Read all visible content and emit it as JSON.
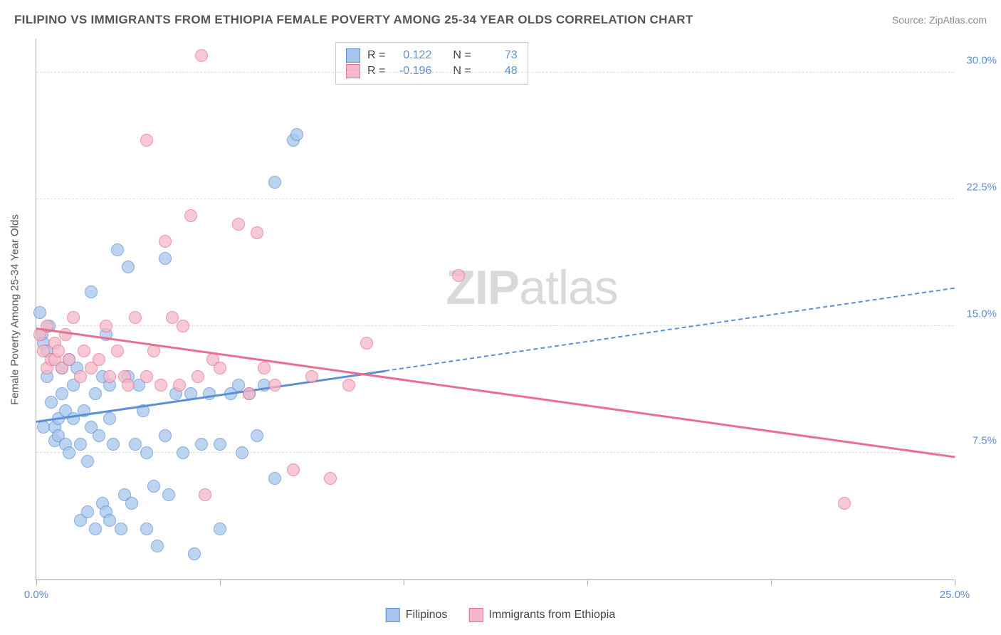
{
  "title": "FILIPINO VS IMMIGRANTS FROM ETHIOPIA FEMALE POVERTY AMONG 25-34 YEAR OLDS CORRELATION CHART",
  "source": "Source: ZipAtlas.com",
  "ylabel": "Female Poverty Among 25-34 Year Olds",
  "watermark_a": "ZIP",
  "watermark_b": "atlas",
  "chart": {
    "type": "scatter",
    "xlim": [
      0,
      25
    ],
    "ylim": [
      0,
      32
    ],
    "background_color": "#ffffff",
    "grid_color": "#dddddd",
    "axis_color": "#aaaaaa",
    "tick_label_color": "#5b8fd6",
    "tick_fontsize": 15,
    "title_fontsize": 17,
    "title_color": "#555555",
    "marker_radius": 9,
    "marker_stroke_width": 1.5,
    "marker_fill_opacity": 0.35,
    "trend_line_width": 2.5,
    "y_gridlines": [
      7.5,
      15.0,
      22.5,
      30.0
    ],
    "y_tick_labels": [
      "7.5%",
      "15.0%",
      "22.5%",
      "30.0%"
    ],
    "x_ticks": [
      0,
      5,
      10,
      15,
      20,
      25
    ],
    "x_tick_labels": [
      "0.0%",
      "",
      "",
      "",
      "",
      "25.0%"
    ]
  },
  "series": [
    {
      "name": "Filipinos",
      "color_stroke": "#5b8fd6",
      "color_fill": "#a8c6ec",
      "R": "0.122",
      "N": "73",
      "trend": {
        "x1": 0,
        "y1": 9.3,
        "x2": 25,
        "y2": 17.2,
        "solid_until_x": 9.5
      },
      "points": [
        [
          0.1,
          15.8
        ],
        [
          0.15,
          14.5
        ],
        [
          0.2,
          14.0
        ],
        [
          0.2,
          9.0
        ],
        [
          0.3,
          13.5
        ],
        [
          0.3,
          12.0
        ],
        [
          0.35,
          15.0
        ],
        [
          0.4,
          10.5
        ],
        [
          0.5,
          8.2
        ],
        [
          0.5,
          9.0
        ],
        [
          0.6,
          8.5
        ],
        [
          0.6,
          9.5
        ],
        [
          0.7,
          12.5
        ],
        [
          0.7,
          11.0
        ],
        [
          0.8,
          10.0
        ],
        [
          0.8,
          8.0
        ],
        [
          0.9,
          13.0
        ],
        [
          0.9,
          7.5
        ],
        [
          1.0,
          11.5
        ],
        [
          1.0,
          9.5
        ],
        [
          1.1,
          12.5
        ],
        [
          1.2,
          8.0
        ],
        [
          1.2,
          3.5
        ],
        [
          1.3,
          10.0
        ],
        [
          1.4,
          7.0
        ],
        [
          1.4,
          4.0
        ],
        [
          1.5,
          17.0
        ],
        [
          1.5,
          9.0
        ],
        [
          1.6,
          11.0
        ],
        [
          1.6,
          3.0
        ],
        [
          1.7,
          8.5
        ],
        [
          1.8,
          12.0
        ],
        [
          1.8,
          4.5
        ],
        [
          1.9,
          14.5
        ],
        [
          1.9,
          4.0
        ],
        [
          2.0,
          11.5
        ],
        [
          2.0,
          9.5
        ],
        [
          2.0,
          3.5
        ],
        [
          2.1,
          8.0
        ],
        [
          2.2,
          19.5
        ],
        [
          2.3,
          3.0
        ],
        [
          2.4,
          5.0
        ],
        [
          2.5,
          18.5
        ],
        [
          2.5,
          12.0
        ],
        [
          2.6,
          4.5
        ],
        [
          2.7,
          8.0
        ],
        [
          2.8,
          11.5
        ],
        [
          2.9,
          10.0
        ],
        [
          3.0,
          7.5
        ],
        [
          3.0,
          3.0
        ],
        [
          3.2,
          5.5
        ],
        [
          3.3,
          2.0
        ],
        [
          3.5,
          19.0
        ],
        [
          3.5,
          8.5
        ],
        [
          3.6,
          5.0
        ],
        [
          3.8,
          11.0
        ],
        [
          4.0,
          7.5
        ],
        [
          4.2,
          11.0
        ],
        [
          4.3,
          1.5
        ],
        [
          4.5,
          8.0
        ],
        [
          4.7,
          11.0
        ],
        [
          5.0,
          8.0
        ],
        [
          5.0,
          3.0
        ],
        [
          5.3,
          11.0
        ],
        [
          5.5,
          11.5
        ],
        [
          5.6,
          7.5
        ],
        [
          5.8,
          11.0
        ],
        [
          6.0,
          8.5
        ],
        [
          6.2,
          11.5
        ],
        [
          6.5,
          23.5
        ],
        [
          7.0,
          26.0
        ],
        [
          7.1,
          26.3
        ],
        [
          6.5,
          6.0
        ]
      ]
    },
    {
      "name": "Immigrants from Ethiopia",
      "color_stroke": "#e86f8f",
      "color_fill": "#f5b8c9",
      "R": "-0.196",
      "N": "48",
      "trend": {
        "x1": 0,
        "y1": 14.8,
        "x2": 25,
        "y2": 7.2,
        "solid_until_x": 25
      },
      "points": [
        [
          0.1,
          14.5
        ],
        [
          0.2,
          13.5
        ],
        [
          0.3,
          15.0
        ],
        [
          0.3,
          12.5
        ],
        [
          0.4,
          13.0
        ],
        [
          0.5,
          14.0
        ],
        [
          0.5,
          13.0
        ],
        [
          0.6,
          13.5
        ],
        [
          0.7,
          12.5
        ],
        [
          0.8,
          14.5
        ],
        [
          0.9,
          13.0
        ],
        [
          1.0,
          15.5
        ],
        [
          1.2,
          12.0
        ],
        [
          1.3,
          13.5
        ],
        [
          1.5,
          12.5
        ],
        [
          1.7,
          13.0
        ],
        [
          1.9,
          15.0
        ],
        [
          2.0,
          12.0
        ],
        [
          2.2,
          13.5
        ],
        [
          2.4,
          12.0
        ],
        [
          2.5,
          11.5
        ],
        [
          2.7,
          15.5
        ],
        [
          3.0,
          12.0
        ],
        [
          3.0,
          26.0
        ],
        [
          3.2,
          13.5
        ],
        [
          3.4,
          11.5
        ],
        [
          3.5,
          20.0
        ],
        [
          3.7,
          15.5
        ],
        [
          3.9,
          11.5
        ],
        [
          4.0,
          15.0
        ],
        [
          4.2,
          21.5
        ],
        [
          4.4,
          12.0
        ],
        [
          4.5,
          31.0
        ],
        [
          4.6,
          5.0
        ],
        [
          4.8,
          13.0
        ],
        [
          5.0,
          12.5
        ],
        [
          5.5,
          21.0
        ],
        [
          5.8,
          11.0
        ],
        [
          6.0,
          20.5
        ],
        [
          6.2,
          12.5
        ],
        [
          6.5,
          11.5
        ],
        [
          7.0,
          6.5
        ],
        [
          7.5,
          12.0
        ],
        [
          8.0,
          6.0
        ],
        [
          8.5,
          11.5
        ],
        [
          9.0,
          14.0
        ],
        [
          11.5,
          18.0
        ],
        [
          22.0,
          4.5
        ]
      ]
    }
  ],
  "stats_labels": {
    "R": "R =",
    "N": "N ="
  },
  "legend": {
    "items": [
      "Filipinos",
      "Immigrants from Ethiopia"
    ]
  }
}
